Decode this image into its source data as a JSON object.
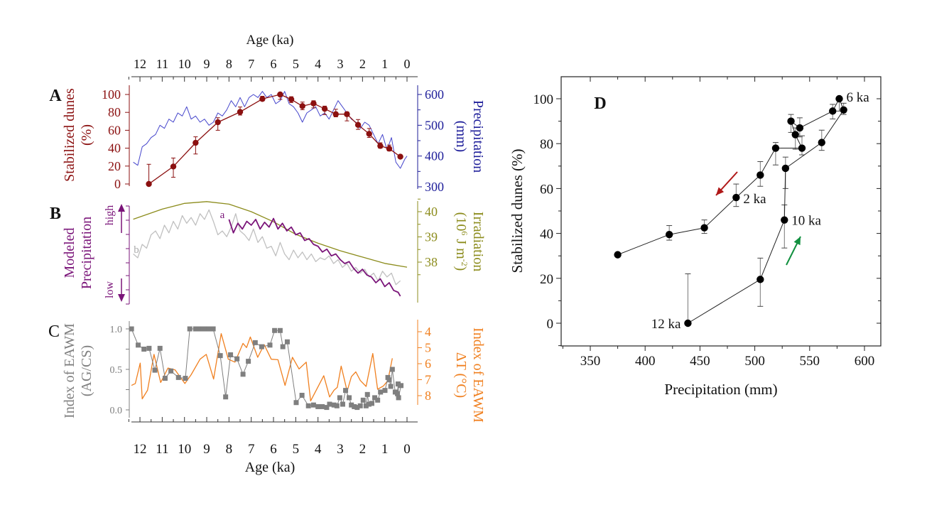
{
  "colors": {
    "dunes": "#8b1010",
    "precip": "#4646cc",
    "precip_axis": "#1e1e9a",
    "modeled_a": "#7a1479",
    "modeled_b": "#c0c0c0",
    "irradiation": "#8c8c1c",
    "agcs": "#7f7f7f",
    "deltaT": "#f08020",
    "arrow_decline": "#b01818",
    "arrow_rise": "#129040",
    "scatter": "#000000"
  },
  "shared_age_axis": {
    "label": "Age (ka)",
    "ticks": [
      "12",
      "11",
      "10",
      "9",
      "8",
      "7",
      "6",
      "5",
      "4",
      "3",
      "2",
      "1",
      "0"
    ],
    "range": [
      12.4,
      -0.5
    ]
  },
  "chart_data": [
    {
      "panel": "A",
      "type": "line",
      "xlabel": "Age (ka)",
      "ylabel_left": [
        "Stabilized dunes",
        "(%)"
      ],
      "ylabel_right": [
        "Precipitation",
        "(mm)"
      ],
      "yticks_left": [
        "0",
        "20",
        "40",
        "60",
        "80",
        "100"
      ],
      "yticks_right": [
        "300",
        "400",
        "500",
        "600"
      ],
      "ylim_left": [
        0,
        110
      ],
      "ylim_right": [
        300,
        620
      ],
      "series": [
        {
          "axis": "left",
          "marker": "circle",
          "error_bars": true,
          "age": [
            11.6,
            10.5,
            9.5,
            8.5,
            7.5,
            6.5,
            5.7,
            5.2,
            4.7,
            4.2,
            3.7,
            3.2,
            2.7,
            2.2,
            1.7,
            1.2,
            0.8,
            0.3
          ],
          "values": [
            0,
            19.5,
            46,
            69,
            80.5,
            95,
            100,
            94.5,
            87,
            90,
            84,
            78,
            78,
            66,
            56,
            42.5,
            39.5,
            30.5
          ],
          "err_low": [
            0,
            7.5,
            33.5,
            60,
            77,
            93,
            94.5,
            91,
            83,
            85,
            77.5,
            75,
            70.5,
            61,
            52,
            40,
            37,
            30.5
          ],
          "err_high": [
            22,
            29,
            52.7,
            74,
            86,
            98,
            100,
            97.5,
            91.5,
            93,
            87,
            83.5,
            80.5,
            72,
            62,
            46,
            43.5,
            30.5
          ]
        },
        {
          "axis": "right",
          "age": [
            12.3,
            12.1,
            11.9,
            11.7,
            11.5,
            11.3,
            11.1,
            10.9,
            10.7,
            10.5,
            10.3,
            10.1,
            9.9,
            9.7,
            9.5,
            9.3,
            9.1,
            8.9,
            8.7,
            8.5,
            8.3,
            8.1,
            7.9,
            7.7,
            7.5,
            7.3,
            7.1,
            6.9,
            6.7,
            6.5,
            6.3,
            6.1,
            5.9,
            5.7,
            5.5,
            5.3,
            5.1,
            4.9,
            4.7,
            4.5,
            4.3,
            4.1,
            3.9,
            3.7,
            3.5,
            3.3,
            3.1,
            2.9,
            2.7,
            2.5,
            2.3,
            2.1,
            1.9,
            1.7,
            1.5,
            1.3,
            1.1,
            0.9,
            0.7,
            0.5,
            0.3,
            0.1,
            0.0
          ],
          "values": [
            380,
            370,
            430,
            440,
            460,
            470,
            500,
            490,
            520,
            510,
            540,
            530,
            560,
            520,
            530,
            510,
            520,
            500,
            510,
            540,
            530,
            550,
            580,
            560,
            590,
            560,
            590,
            600,
            590,
            610,
            590,
            600,
            570,
            580,
            610,
            570,
            560,
            540,
            510,
            540,
            550,
            560,
            530,
            540,
            520,
            550,
            580,
            560,
            540,
            520,
            510,
            490,
            510,
            500,
            470,
            440,
            470,
            420,
            460,
            380,
            360,
            390,
            400
          ]
        }
      ]
    },
    {
      "panel": "B",
      "type": "line",
      "ylabel_left": [
        "Modeled",
        "Precipitation"
      ],
      "left_axis_markers": {
        "high": "high",
        "low": "low"
      },
      "ylabel_right": [
        "Irradiation",
        "(10",
        "6",
        " J m",
        "-2",
        ")"
      ],
      "yticks_right": [
        "38",
        "39",
        "40"
      ],
      "ylim_right": [
        37.6,
        40.5
      ],
      "series": [
        {
          "name": "a",
          "axis": "left",
          "units": "relative (low 0 – high 1)",
          "age": [
            8.0,
            7.8,
            7.6,
            7.4,
            7.2,
            7.0,
            6.8,
            6.6,
            6.4,
            6.2,
            6.0,
            5.8,
            5.6,
            5.4,
            5.2,
            5.0,
            4.8,
            4.6,
            4.4,
            4.2,
            4.0,
            3.8,
            3.6,
            3.4,
            3.2,
            3.0,
            2.8,
            2.6,
            2.4,
            2.2,
            2.0,
            1.8,
            1.6,
            1.4,
            1.2,
            1.0,
            0.8,
            0.6,
            0.4,
            0.3
          ],
          "values": [
            0.86,
            0.72,
            0.82,
            0.76,
            0.84,
            0.8,
            0.86,
            0.76,
            0.83,
            0.78,
            0.87,
            0.76,
            0.82,
            0.74,
            0.78,
            0.7,
            0.72,
            0.64,
            0.66,
            0.6,
            0.58,
            0.52,
            0.55,
            0.48,
            0.5,
            0.44,
            0.4,
            0.42,
            0.35,
            0.3,
            0.34,
            0.28,
            0.26,
            0.2,
            0.24,
            0.16,
            0.2,
            0.12,
            0.1,
            0.06
          ]
        },
        {
          "name": "b",
          "axis": "left",
          "units": "relative (low 0 – high 1)",
          "age": [
            12.3,
            12.1,
            11.9,
            11.7,
            11.5,
            11.3,
            11.1,
            10.9,
            10.7,
            10.5,
            10.3,
            10.1,
            9.9,
            9.7,
            9.5,
            9.3,
            9.1,
            8.9,
            8.7,
            8.5,
            8.3,
            8.1,
            7.9,
            7.7,
            7.5,
            7.3,
            7.1,
            6.9,
            6.7,
            6.5,
            6.3,
            6.1,
            5.9,
            5.7,
            5.5,
            5.3,
            5.1,
            4.9,
            4.7,
            4.5,
            4.3,
            4.1,
            3.9,
            3.7,
            3.5,
            3.3,
            3.1,
            2.9,
            2.7,
            2.5,
            2.3,
            2.1,
            1.9,
            1.7,
            1.5,
            1.3,
            1.1,
            0.9,
            0.7,
            0.5,
            0.3
          ],
          "values": [
            0.5,
            0.46,
            0.6,
            0.56,
            0.7,
            0.74,
            0.66,
            0.8,
            0.72,
            0.84,
            0.76,
            0.9,
            0.82,
            0.88,
            0.8,
            0.92,
            0.86,
            0.96,
            0.84,
            0.7,
            0.74,
            0.68,
            0.78,
            0.92,
            0.74,
            0.7,
            0.64,
            0.76,
            0.62,
            0.68,
            0.56,
            0.58,
            0.48,
            0.62,
            0.5,
            0.44,
            0.54,
            0.46,
            0.52,
            0.44,
            0.5,
            0.42,
            0.46,
            0.44,
            0.48,
            0.4,
            0.44,
            0.36,
            0.4,
            0.32,
            0.36,
            0.3,
            0.34,
            0.26,
            0.3,
            0.22,
            0.32,
            0.26,
            0.3,
            0.18,
            0.22
          ]
        },
        {
          "axis": "right",
          "age": [
            12.3,
            11.0,
            10.0,
            9.0,
            8.0,
            7.0,
            6.0,
            5.0,
            4.0,
            3.0,
            2.0,
            1.0,
            0.0
          ],
          "values": [
            39.7,
            40.1,
            40.33,
            40.4,
            40.3,
            40.0,
            39.6,
            39.1,
            38.75,
            38.45,
            38.2,
            37.95,
            37.8
          ]
        }
      ]
    },
    {
      "panel": "C",
      "type": "line",
      "xlabel": "Age (ka)",
      "ylabel_left": [
        "Index of EAWM",
        "(AG/CS)"
      ],
      "ylabel_right": [
        "Index of EAWM",
        "ΔT (°C)"
      ],
      "yticks_left": [
        "0.0",
        "0.5",
        "1.0"
      ],
      "yticks_right": [
        "4",
        "5",
        "6",
        "7",
        "8"
      ],
      "ylim_left": [
        -0.1,
        1.1
      ],
      "ylim_right_inverted": [
        3.6,
        8.6
      ],
      "series": [
        {
          "axis": "left",
          "marker": "square",
          "age": [
            12.38,
            12.08,
            11.82,
            11.59,
            11.33,
            11.1,
            10.87,
            10.61,
            10.27,
            9.96,
            9.76,
            9.5,
            9.3,
            9.17,
            9.04,
            8.91,
            8.71,
            8.39,
            8.15,
            7.93,
            7.64,
            7.37,
            7.13,
            6.82,
            6.53,
            6.16,
            5.95,
            5.7,
            5.58,
            5.38,
            4.98,
            4.72,
            4.43,
            4.2,
            4.0,
            3.81,
            3.61,
            3.48,
            3.28,
            3.15,
            3.02,
            2.89,
            2.76,
            2.6,
            2.5,
            2.37,
            2.24,
            2.1,
            1.97,
            1.84,
            1.78,
            1.71,
            1.58,
            1.45,
            1.32,
            1.19,
            0.99,
            0.86,
            0.8,
            0.73,
            0.66,
            0.53,
            0.43,
            0.4,
            0.38,
            0.27
          ],
          "values": [
            1.0,
            0.8,
            0.75,
            0.76,
            0.49,
            0.76,
            0.39,
            0.48,
            0.4,
            0.39,
            1.0,
            1.0,
            1.0,
            1.0,
            1.0,
            1.0,
            1.0,
            0.67,
            0.16,
            0.68,
            0.63,
            0.44,
            0.6,
            0.83,
            0.78,
            0.8,
            0.98,
            0.98,
            0.78,
            0.84,
            0.09,
            0.18,
            0.05,
            0.06,
            0.04,
            0.04,
            0.03,
            0.07,
            0.06,
            0.05,
            0.15,
            0.07,
            0.24,
            0.15,
            0.06,
            0.04,
            0.03,
            0.05,
            0.12,
            0.05,
            0.19,
            0.07,
            0.08,
            0.15,
            0.12,
            0.22,
            0.24,
            0.4,
            0.37,
            0.29,
            0.5,
            0.22,
            0.2,
            0.32,
            0.15,
            0.3
          ]
        },
        {
          "axis": "right",
          "age": [
            12.38,
            12.21,
            11.99,
            11.9,
            11.66,
            11.37,
            11.07,
            10.74,
            10.42,
            9.98,
            9.7,
            9.3,
            9.02,
            8.69,
            8.35,
            8.03,
            7.73,
            7.37,
            7.21,
            7.04,
            6.71,
            6.42,
            6.1,
            5.8,
            5.48,
            5.15,
            4.85,
            4.53,
            4.33,
            3.74,
            3.48,
            3.28,
            3.13,
            2.96,
            2.69,
            2.5,
            2.3,
            2.1,
            1.84,
            1.54,
            1.32,
            1.06,
            0.86,
            0.66
          ],
          "values": [
            7.36,
            7.24,
            5.96,
            8.2,
            7.66,
            5.42,
            7.18,
            6.27,
            6.39,
            7.24,
            6.69,
            5.72,
            5.42,
            6.96,
            4.12,
            5.72,
            5.9,
            4.73,
            4.99,
            4.33,
            5.6,
            4.81,
            5.72,
            5.75,
            7.36,
            5.6,
            6.33,
            5.9,
            8.33,
            6.75,
            8.08,
            7.66,
            7.48,
            6.15,
            7.72,
            6.81,
            6.51,
            7.05,
            7.42,
            5.36,
            7.6,
            7.39,
            7.05,
            5.66
          ]
        }
      ]
    },
    {
      "panel": "D",
      "type": "scatter",
      "xlabel": "Precipitation (mm)",
      "ylabel": "Stabilized dunes (%)",
      "xticks": [
        "350",
        "400",
        "450",
        "500",
        "550",
        "600"
      ],
      "yticks": [
        "0",
        "20",
        "40",
        "60",
        "80",
        "100"
      ],
      "xlim": [
        325,
        612
      ],
      "ylim": [
        -10,
        110
      ],
      "connected": true,
      "x": [
        439,
        505,
        527,
        528,
        561,
        581,
        577,
        571,
        541,
        533,
        537,
        543,
        519,
        505,
        483,
        454,
        422,
        375
      ],
      "y": [
        0,
        19.5,
        46,
        69,
        80.5,
        95,
        100,
        94.5,
        87,
        90,
        84,
        78,
        78,
        66,
        56,
        42.5,
        39.5,
        30.5
      ],
      "err_low": [
        0,
        7.5,
        33.5,
        60,
        77,
        93,
        94.5,
        91,
        83,
        85,
        77.5,
        75,
        70.5,
        61,
        52,
        40,
        37,
        30.5
      ],
      "err_high": [
        22,
        29,
        52.7,
        74,
        86,
        98,
        100,
        97.5,
        91.5,
        93,
        87,
        83.5,
        80.5,
        72,
        62,
        46,
        43.5,
        30.5
      ],
      "annotations": [
        {
          "text": "12 ka",
          "point": 0
        },
        {
          "text": "10 ka",
          "point": 2
        },
        {
          "text": "6 ka",
          "point": 6
        },
        {
          "text": "2 ka",
          "point": 14
        }
      ],
      "arrows": [
        {
          "direction": "down-left",
          "color": "arrow_decline"
        },
        {
          "direction": "up-right",
          "color": "arrow_rise"
        }
      ]
    }
  ],
  "panel_labels": {
    "A": "A",
    "B": "B",
    "C": "C",
    "D": "D"
  }
}
